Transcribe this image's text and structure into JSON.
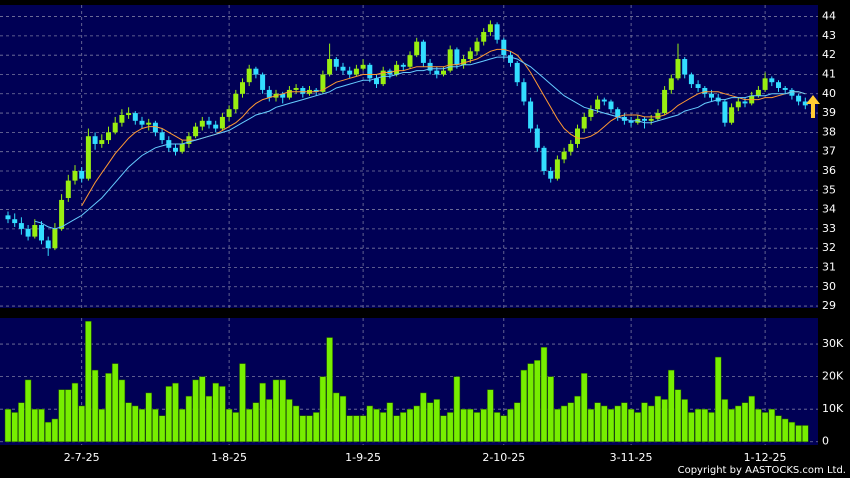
{
  "chart_data": [
    {
      "type": "candlestick",
      "up_color": "#99ee11",
      "down_color": "#33ddff",
      "ylim": [
        28.9,
        44.6
      ],
      "yticks": [
        29,
        30,
        31,
        32,
        33,
        34,
        35,
        36,
        37,
        38,
        39,
        40,
        41,
        42,
        43,
        44
      ],
      "grid": true,
      "candles": [
        [
          33.7,
          33.9,
          33.3,
          33.5
        ],
        [
          33.5,
          33.8,
          33.1,
          33.3
        ],
        [
          33.3,
          33.6,
          32.7,
          33.0
        ],
        [
          33.0,
          33.2,
          32.4,
          32.6
        ],
        [
          32.6,
          33.5,
          32.5,
          33.2
        ],
        [
          33.2,
          33.4,
          32.2,
          32.4
        ],
        [
          32.4,
          32.6,
          31.6,
          32.0
        ],
        [
          32.0,
          33.3,
          31.9,
          33.0
        ],
        [
          33.0,
          34.8,
          32.9,
          34.5
        ],
        [
          34.6,
          35.8,
          34.4,
          35.5
        ],
        [
          35.5,
          36.3,
          35.3,
          36.0
        ],
        [
          36.0,
          36.2,
          35.4,
          35.6
        ],
        [
          35.6,
          38.2,
          35.5,
          37.8
        ],
        [
          37.8,
          38.0,
          37.1,
          37.4
        ],
        [
          37.4,
          37.9,
          37.2,
          37.6
        ],
        [
          37.6,
          38.3,
          37.4,
          38.0
        ],
        [
          38.0,
          38.8,
          37.9,
          38.5
        ],
        [
          38.5,
          39.2,
          38.3,
          38.9
        ],
        [
          38.9,
          39.3,
          38.7,
          39.0
        ],
        [
          39.0,
          39.1,
          38.4,
          38.6
        ],
        [
          38.6,
          38.8,
          38.2,
          38.4
        ],
        [
          38.4,
          38.7,
          38.1,
          38.5
        ],
        [
          38.5,
          38.6,
          37.8,
          38.0
        ],
        [
          38.0,
          38.2,
          37.4,
          37.6
        ],
        [
          37.6,
          37.8,
          37.0,
          37.2
        ],
        [
          37.2,
          37.4,
          36.8,
          37.0
        ],
        [
          37.0,
          37.6,
          36.9,
          37.4
        ],
        [
          37.4,
          38.0,
          37.2,
          37.8
        ],
        [
          37.8,
          38.5,
          37.7,
          38.3
        ],
        [
          38.3,
          38.8,
          38.1,
          38.6
        ],
        [
          38.6,
          38.8,
          38.2,
          38.4
        ],
        [
          38.4,
          38.6,
          38.0,
          38.2
        ],
        [
          38.2,
          39.0,
          38.1,
          38.8
        ],
        [
          38.8,
          39.4,
          38.6,
          39.2
        ],
        [
          39.2,
          40.2,
          39.0,
          40.0
        ],
        [
          40.0,
          40.8,
          39.8,
          40.6
        ],
        [
          40.6,
          41.5,
          40.4,
          41.3
        ],
        [
          41.3,
          41.4,
          40.8,
          41.0
        ],
        [
          41.0,
          41.1,
          40.0,
          40.2
        ],
        [
          40.2,
          40.4,
          39.6,
          39.8
        ],
        [
          39.8,
          40.2,
          39.6,
          40.0
        ],
        [
          40.0,
          40.1,
          39.5,
          39.8
        ],
        [
          39.8,
          40.4,
          39.7,
          40.2
        ],
        [
          40.2,
          40.5,
          40.0,
          40.3
        ],
        [
          40.3,
          40.4,
          39.8,
          40.0
        ],
        [
          40.0,
          40.4,
          39.9,
          40.2
        ],
        [
          40.2,
          40.3,
          39.9,
          40.1
        ],
        [
          40.1,
          41.2,
          40.0,
          41.0
        ],
        [
          41.0,
          42.6,
          40.9,
          41.8
        ],
        [
          41.8,
          41.9,
          41.2,
          41.4
        ],
        [
          41.4,
          41.6,
          41.0,
          41.2
        ],
        [
          41.2,
          41.4,
          40.8,
          41.0
        ],
        [
          41.0,
          41.5,
          40.9,
          41.3
        ],
        [
          41.3,
          41.8,
          41.2,
          41.5
        ],
        [
          41.5,
          41.6,
          40.6,
          40.8
        ],
        [
          40.8,
          41.0,
          40.3,
          40.5
        ],
        [
          40.5,
          41.4,
          40.4,
          41.2
        ],
        [
          41.2,
          41.3,
          40.8,
          41.0
        ],
        [
          41.0,
          41.7,
          40.9,
          41.5
        ],
        [
          41.5,
          41.6,
          41.2,
          41.4
        ],
        [
          41.4,
          42.2,
          41.3,
          42.0
        ],
        [
          42.0,
          42.9,
          41.9,
          42.7
        ],
        [
          42.7,
          42.8,
          41.4,
          41.6
        ],
        [
          41.6,
          41.8,
          41.0,
          41.2
        ],
        [
          41.2,
          41.4,
          40.8,
          41.0
        ],
        [
          41.0,
          41.4,
          40.9,
          41.2
        ],
        [
          41.2,
          42.5,
          41.1,
          42.3
        ],
        [
          42.3,
          42.4,
          41.3,
          41.5
        ],
        [
          41.5,
          42.0,
          41.3,
          41.8
        ],
        [
          41.8,
          42.4,
          41.6,
          42.2
        ],
        [
          42.2,
          42.9,
          42.0,
          42.7
        ],
        [
          42.7,
          43.4,
          42.5,
          43.2
        ],
        [
          43.2,
          43.8,
          43.0,
          43.6
        ],
        [
          43.6,
          43.7,
          42.6,
          42.8
        ],
        [
          42.8,
          42.9,
          41.8,
          42.0
        ],
        [
          42.0,
          42.2,
          41.4,
          41.6
        ],
        [
          41.6,
          41.7,
          40.4,
          40.6
        ],
        [
          40.6,
          40.8,
          39.4,
          39.6
        ],
        [
          39.6,
          39.8,
          38.0,
          38.2
        ],
        [
          38.2,
          38.4,
          37.0,
          37.2
        ],
        [
          37.2,
          37.3,
          35.8,
          36.0
        ],
        [
          36.0,
          36.2,
          35.4,
          35.6
        ],
        [
          35.6,
          36.8,
          35.5,
          36.6
        ],
        [
          36.6,
          37.2,
          36.4,
          37.0
        ],
        [
          37.0,
          37.6,
          36.8,
          37.4
        ],
        [
          37.4,
          38.4,
          37.2,
          38.2
        ],
        [
          38.2,
          39.0,
          38.0,
          38.8
        ],
        [
          38.8,
          39.4,
          38.6,
          39.2
        ],
        [
          39.2,
          39.9,
          39.0,
          39.7
        ],
        [
          39.7,
          39.8,
          39.4,
          39.6
        ],
        [
          39.6,
          39.7,
          39.0,
          39.2
        ],
        [
          39.2,
          39.3,
          38.6,
          38.8
        ],
        [
          38.8,
          39.0,
          38.4,
          38.6
        ],
        [
          38.6,
          38.8,
          38.3,
          38.5
        ],
        [
          38.5,
          38.9,
          38.4,
          38.7
        ],
        [
          38.7,
          38.8,
          38.2,
          38.6
        ],
        [
          38.6,
          38.9,
          38.4,
          38.7
        ],
        [
          38.7,
          39.2,
          38.6,
          39.0
        ],
        [
          39.0,
          40.4,
          38.9,
          40.2
        ],
        [
          40.2,
          41.0,
          40.0,
          40.8
        ],
        [
          40.8,
          42.6,
          40.7,
          41.8
        ],
        [
          41.8,
          41.9,
          40.8,
          41.0
        ],
        [
          41.0,
          41.1,
          40.3,
          40.5
        ],
        [
          40.5,
          40.7,
          40.1,
          40.3
        ],
        [
          40.3,
          40.4,
          39.8,
          40.0
        ],
        [
          40.0,
          40.2,
          39.6,
          39.8
        ],
        [
          39.8,
          40.0,
          39.4,
          39.6
        ],
        [
          39.6,
          39.7,
          38.3,
          38.5
        ],
        [
          38.5,
          39.5,
          38.4,
          39.3
        ],
        [
          39.3,
          39.8,
          39.1,
          39.6
        ],
        [
          39.6,
          39.8,
          39.3,
          39.5
        ],
        [
          39.5,
          40.1,
          39.4,
          39.9
        ],
        [
          39.9,
          40.4,
          39.8,
          40.2
        ],
        [
          40.2,
          41.1,
          40.1,
          40.8
        ],
        [
          40.8,
          40.9,
          40.4,
          40.6
        ],
        [
          40.6,
          40.7,
          40.1,
          40.3
        ],
        [
          40.3,
          40.4,
          40.0,
          40.2
        ],
        [
          40.2,
          40.3,
          39.7,
          39.9
        ],
        [
          39.9,
          40.0,
          39.4,
          39.6
        ],
        [
          39.6,
          39.8,
          39.2,
          39.4
        ]
      ],
      "lines": [
        {
          "color": "#ff9933",
          "values": [
            null,
            null,
            null,
            null,
            null,
            null,
            null,
            null,
            null,
            null,
            null,
            34.2,
            34.8,
            35.4,
            35.9,
            36.4,
            36.9,
            37.3,
            37.7,
            38.0,
            38.2,
            38.3,
            38.3,
            38.2,
            38.0,
            37.8,
            37.6,
            37.6,
            37.6,
            37.7,
            37.8,
            37.9,
            38.1,
            38.3,
            38.5,
            38.8,
            39.2,
            39.5,
            39.7,
            39.8,
            39.9,
            40.0,
            40.1,
            40.1,
            40.1,
            40.1,
            40.1,
            40.2,
            40.4,
            40.6,
            40.7,
            40.8,
            40.9,
            41.0,
            41.0,
            41.0,
            41.1,
            41.1,
            41.2,
            41.2,
            41.3,
            41.4,
            41.4,
            41.4,
            41.4,
            41.4,
            41.5,
            41.5,
            41.6,
            41.7,
            41.8,
            42.0,
            42.2,
            42.3,
            42.3,
            42.2,
            42.0,
            41.6,
            41.1,
            40.5,
            39.9,
            39.3,
            38.7,
            38.2,
            37.9,
            37.7,
            37.7,
            37.8,
            38.0,
            38.3,
            38.6,
            38.8,
            38.9,
            38.9,
            38.9,
            38.8,
            38.8,
            38.8,
            38.9,
            39.1,
            39.4,
            39.6,
            39.8,
            40.0,
            40.1,
            40.1,
            40.1,
            40.0,
            39.9,
            39.8,
            39.7,
            39.7,
            39.7,
            39.8,
            39.8,
            39.9,
            40.0,
            40.1,
            40.1,
            40.0
          ]
        },
        {
          "color": "#66ccff",
          "values": [
            null,
            null,
            null,
            null,
            33.4,
            33.3,
            33.1,
            33.0,
            33.1,
            33.3,
            33.5,
            33.7,
            34.0,
            34.3,
            34.6,
            35.0,
            35.4,
            35.8,
            36.2,
            36.5,
            36.8,
            37.0,
            37.2,
            37.3,
            37.4,
            37.4,
            37.4,
            37.5,
            37.6,
            37.7,
            37.8,
            37.9,
            38.0,
            38.1,
            38.3,
            38.5,
            38.7,
            38.9,
            39.0,
            39.1,
            39.3,
            39.4,
            39.5,
            39.6,
            39.7,
            39.8,
            39.9,
            40.0,
            40.1,
            40.3,
            40.4,
            40.5,
            40.6,
            40.7,
            40.7,
            40.8,
            40.9,
            40.9,
            41.0,
            41.1,
            41.1,
            41.2,
            41.2,
            41.3,
            41.3,
            41.3,
            41.4,
            41.4,
            41.5,
            41.5,
            41.6,
            41.7,
            41.8,
            41.9,
            41.9,
            41.9,
            41.8,
            41.6,
            41.4,
            41.1,
            40.8,
            40.5,
            40.2,
            39.9,
            39.7,
            39.5,
            39.3,
            39.2,
            39.1,
            39.0,
            38.9,
            38.8,
            38.7,
            38.6,
            38.6,
            38.5,
            38.5,
            38.6,
            38.7,
            38.8,
            38.9,
            39.1,
            39.2,
            39.3,
            39.5,
            39.6,
            39.7,
            39.7,
            39.8,
            39.8,
            39.8,
            39.9,
            39.9,
            39.9,
            40.0,
            40.0,
            40.0,
            40.1,
            40.1,
            40.0
          ]
        }
      ]
    },
    {
      "type": "bar",
      "color": "#77ee00",
      "ylim": [
        -1000,
        38000
      ],
      "yticks": [
        0,
        {
          "value": 10000,
          "label": "10K"
        },
        {
          "value": 20000,
          "label": "20K"
        },
        {
          "value": 30000,
          "label": "30K"
        }
      ],
      "grid": true,
      "categories": [
        null,
        null,
        null,
        null,
        null,
        null,
        null,
        null,
        null,
        null,
        null,
        "2-7-25",
        null,
        null,
        null,
        null,
        null,
        null,
        null,
        null,
        null,
        null,
        null,
        null,
        null,
        null,
        null,
        null,
        null,
        null,
        null,
        null,
        null,
        "1-8-25",
        null,
        null,
        null,
        null,
        null,
        null,
        null,
        null,
        null,
        null,
        null,
        null,
        null,
        null,
        null,
        null,
        null,
        null,
        null,
        "1-9-25",
        null,
        null,
        null,
        null,
        null,
        null,
        null,
        null,
        null,
        null,
        null,
        null,
        null,
        null,
        null,
        null,
        null,
        null,
        null,
        null,
        "2-10-25",
        null,
        null,
        null,
        null,
        null,
        null,
        null,
        null,
        null,
        null,
        null,
        null,
        null,
        null,
        null,
        null,
        null,
        null,
        "3-11-25",
        null,
        null,
        null,
        null,
        null,
        null,
        null,
        null,
        null,
        null,
        null,
        null,
        null,
        null,
        null,
        null,
        null,
        null,
        null,
        "1-12-25",
        null,
        null,
        null,
        null,
        null,
        null
      ],
      "values": [
        10000,
        9000,
        12000,
        19000,
        10000,
        10000,
        6000,
        7000,
        16000,
        16000,
        18000,
        11000,
        37000,
        22000,
        10000,
        21000,
        24000,
        19000,
        12000,
        11000,
        10000,
        15000,
        10000,
        8000,
        17000,
        18000,
        10000,
        14000,
        19000,
        20000,
        14000,
        18000,
        17000,
        10000,
        9000,
        24000,
        10000,
        12000,
        18000,
        13000,
        19000,
        19000,
        13000,
        11000,
        8000,
        8000,
        9000,
        20000,
        32000,
        15000,
        14000,
        8000,
        8000,
        8000,
        11000,
        10000,
        9000,
        12000,
        8000,
        9000,
        10000,
        11000,
        15000,
        12000,
        13000,
        8000,
        9000,
        20000,
        10000,
        10000,
        9000,
        10000,
        16000,
        9000,
        8000,
        10000,
        12000,
        22000,
        24000,
        25000,
        29000,
        20000,
        10000,
        11000,
        12000,
        14000,
        21000,
        10000,
        12000,
        11000,
        10000,
        11000,
        12000,
        10000,
        9000,
        12000,
        11000,
        14000,
        13000,
        22000,
        16000,
        13000,
        9000,
        10000,
        10000,
        9000,
        26000,
        13000,
        10000,
        11000,
        12000,
        14000,
        10000,
        9000,
        10000,
        8000,
        7000,
        6000,
        5000,
        5000
      ]
    }
  ],
  "copyright": "Copyright by AASTOCKS.com Ltd."
}
